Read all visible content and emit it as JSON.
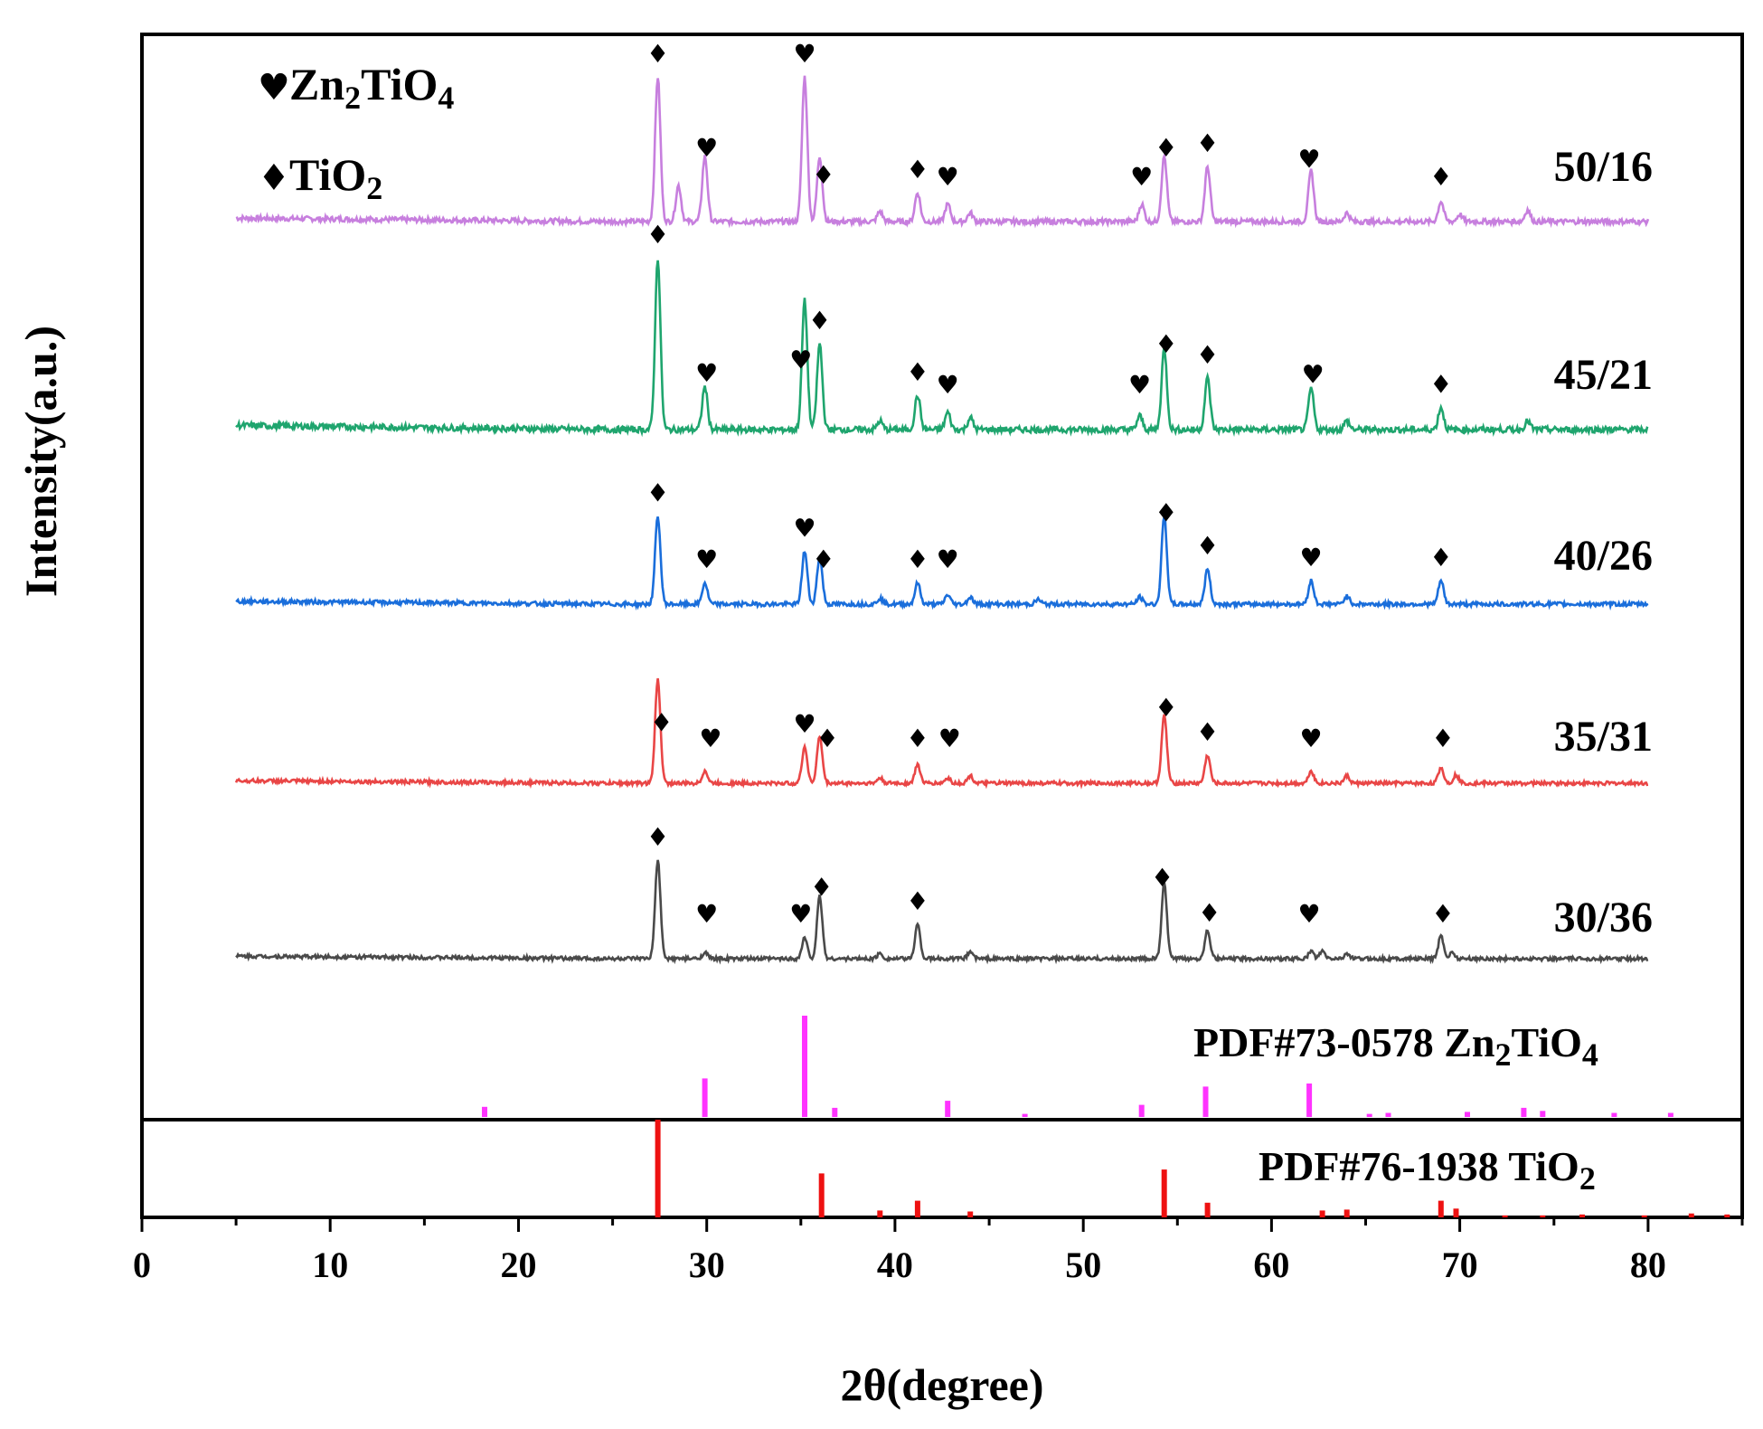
{
  "chart_data": {
    "type": "line",
    "title": "",
    "xlabel": "2θ(degree)",
    "ylabel": "Intensity(a.u.)",
    "xlim": [
      0,
      85
    ],
    "x_ticks": [
      0,
      10,
      20,
      30,
      40,
      50,
      60,
      70,
      80
    ],
    "legend": [
      {
        "symbol": "♥",
        "formula_parts": [
          "Zn",
          "2",
          "TiO",
          "4"
        ],
        "phase": "Zn2TiO4"
      },
      {
        "symbol": "♦",
        "formula_parts": [
          "TiO",
          "2"
        ],
        "phase": "TiO2"
      }
    ],
    "series": [
      {
        "name": "50/16",
        "color": "#C77FDE",
        "peaks": [
          [
            27.4,
            1.0
          ],
          [
            28.5,
            0.25
          ],
          [
            29.9,
            0.45
          ],
          [
            35.2,
            1.0
          ],
          [
            36.0,
            0.45
          ],
          [
            39.2,
            0.07
          ],
          [
            41.2,
            0.2
          ],
          [
            42.8,
            0.12
          ],
          [
            44.0,
            0.06
          ],
          [
            53.1,
            0.12
          ],
          [
            54.3,
            0.45
          ],
          [
            56.6,
            0.38
          ],
          [
            62.1,
            0.35
          ],
          [
            64.0,
            0.06
          ],
          [
            69.0,
            0.14
          ],
          [
            70.0,
            0.05
          ],
          [
            73.6,
            0.08
          ]
        ],
        "markers": [
          {
            "x": 27.4,
            "symbol": "♦"
          },
          {
            "x": 30.0,
            "symbol": "♥"
          },
          {
            "x": 35.2,
            "symbol": "♥"
          },
          {
            "x": 36.2,
            "symbol": "♦"
          },
          {
            "x": 41.2,
            "symbol": "♦"
          },
          {
            "x": 42.8,
            "symbol": "♥"
          },
          {
            "x": 53.1,
            "symbol": "♥"
          },
          {
            "x": 54.4,
            "symbol": "♦"
          },
          {
            "x": 56.6,
            "symbol": "♦"
          },
          {
            "x": 62.0,
            "symbol": "♥"
          },
          {
            "x": 69.0,
            "symbol": "♦"
          }
        ]
      },
      {
        "name": "45/21",
        "color": "#1FA56E",
        "peaks": [
          [
            27.4,
            1.0
          ],
          [
            29.9,
            0.25
          ],
          [
            35.2,
            0.75
          ],
          [
            36.0,
            0.5
          ],
          [
            39.2,
            0.05
          ],
          [
            41.2,
            0.2
          ],
          [
            42.8,
            0.1
          ],
          [
            44.0,
            0.07
          ],
          [
            53.0,
            0.08
          ],
          [
            54.3,
            0.47
          ],
          [
            56.6,
            0.3
          ],
          [
            62.1,
            0.24
          ],
          [
            64.0,
            0.05
          ],
          [
            69.0,
            0.13
          ],
          [
            73.6,
            0.05
          ]
        ],
        "markers": [
          {
            "x": 27.4,
            "symbol": "♦"
          },
          {
            "x": 30.0,
            "symbol": "♥"
          },
          {
            "x": 35.0,
            "symbol": "♥"
          },
          {
            "x": 36.0,
            "symbol": "♦"
          },
          {
            "x": 41.2,
            "symbol": "♦"
          },
          {
            "x": 42.8,
            "symbol": "♥"
          },
          {
            "x": 53.0,
            "symbol": "♥"
          },
          {
            "x": 54.4,
            "symbol": "♦"
          },
          {
            "x": 56.6,
            "symbol": "♦"
          },
          {
            "x": 62.2,
            "symbol": "♥"
          },
          {
            "x": 69.0,
            "symbol": "♦"
          }
        ]
      },
      {
        "name": "40/26",
        "color": "#1A6EDB",
        "peaks": [
          [
            27.4,
            0.75
          ],
          [
            29.9,
            0.18
          ],
          [
            35.2,
            0.45
          ],
          [
            36.0,
            0.4
          ],
          [
            39.2,
            0.05
          ],
          [
            41.2,
            0.18
          ],
          [
            42.8,
            0.08
          ],
          [
            44.0,
            0.06
          ],
          [
            47.6,
            0.04
          ],
          [
            53.0,
            0.06
          ],
          [
            54.3,
            0.75
          ],
          [
            56.6,
            0.3
          ],
          [
            62.1,
            0.2
          ],
          [
            64.0,
            0.07
          ],
          [
            69.0,
            0.2
          ]
        ],
        "markers": [
          {
            "x": 27.4,
            "symbol": "♦"
          },
          {
            "x": 30.0,
            "symbol": "♥"
          },
          {
            "x": 35.2,
            "symbol": "♥"
          },
          {
            "x": 36.2,
            "symbol": "♦"
          },
          {
            "x": 41.2,
            "symbol": "♦"
          },
          {
            "x": 42.8,
            "symbol": "♥"
          },
          {
            "x": 54.4,
            "symbol": "♦"
          },
          {
            "x": 56.6,
            "symbol": "♦"
          },
          {
            "x": 62.1,
            "symbol": "♥"
          },
          {
            "x": 69.0,
            "symbol": "♦"
          }
        ]
      },
      {
        "name": "35/31",
        "color": "#E94646",
        "peaks": [
          [
            27.4,
            1.0
          ],
          [
            29.9,
            0.12
          ],
          [
            35.2,
            0.35
          ],
          [
            36.0,
            0.45
          ],
          [
            39.2,
            0.05
          ],
          [
            41.2,
            0.18
          ],
          [
            42.8,
            0.05
          ],
          [
            44.0,
            0.07
          ],
          [
            54.3,
            0.65
          ],
          [
            56.6,
            0.27
          ],
          [
            62.1,
            0.12
          ],
          [
            64.0,
            0.07
          ],
          [
            69.0,
            0.15
          ],
          [
            69.8,
            0.08
          ]
        ],
        "markers": [
          {
            "x": 27.6,
            "symbol": "♦"
          },
          {
            "x": 30.2,
            "symbol": "♥"
          },
          {
            "x": 35.2,
            "symbol": "♥"
          },
          {
            "x": 36.4,
            "symbol": "♦"
          },
          {
            "x": 41.2,
            "symbol": "♦"
          },
          {
            "x": 42.9,
            "symbol": "♥"
          },
          {
            "x": 54.4,
            "symbol": "♦"
          },
          {
            "x": 56.6,
            "symbol": "♦"
          },
          {
            "x": 62.1,
            "symbol": "♥"
          },
          {
            "x": 69.1,
            "symbol": "♦"
          }
        ]
      },
      {
        "name": "30/36",
        "color": "#4A4A4A",
        "peaks": [
          [
            27.4,
            0.95
          ],
          [
            29.9,
            0.06
          ],
          [
            35.2,
            0.2
          ],
          [
            36.0,
            0.6
          ],
          [
            39.2,
            0.05
          ],
          [
            41.2,
            0.33
          ],
          [
            44.0,
            0.07
          ],
          [
            54.3,
            0.72
          ],
          [
            56.6,
            0.28
          ],
          [
            62.1,
            0.07
          ],
          [
            62.7,
            0.07
          ],
          [
            64.0,
            0.05
          ],
          [
            69.0,
            0.22
          ],
          [
            69.6,
            0.06
          ]
        ],
        "markers": [
          {
            "x": 27.4,
            "symbol": "♦"
          },
          {
            "x": 30.0,
            "symbol": "♥"
          },
          {
            "x": 35.0,
            "symbol": "♥"
          },
          {
            "x": 36.1,
            "symbol": "♦"
          },
          {
            "x": 41.2,
            "symbol": "♦"
          },
          {
            "x": 54.2,
            "symbol": "♦"
          },
          {
            "x": 56.7,
            "symbol": "♦"
          },
          {
            "x": 62.0,
            "symbol": "♥"
          },
          {
            "x": 69.1,
            "symbol": "♦"
          }
        ]
      }
    ],
    "references": [
      {
        "label_parts": [
          "PDF#73-0578 Zn",
          "2",
          "TiO",
          "4"
        ],
        "color": "#FF33FF",
        "sticks": [
          [
            18.2,
            0.1
          ],
          [
            29.9,
            0.38
          ],
          [
            35.2,
            1.0
          ],
          [
            36.8,
            0.09
          ],
          [
            42.8,
            0.16
          ],
          [
            46.9,
            0.03
          ],
          [
            53.1,
            0.12
          ],
          [
            56.5,
            0.3
          ],
          [
            62.0,
            0.33
          ],
          [
            65.2,
            0.03
          ],
          [
            66.2,
            0.04
          ],
          [
            70.4,
            0.05
          ],
          [
            73.4,
            0.09
          ],
          [
            74.4,
            0.06
          ],
          [
            78.2,
            0.04
          ],
          [
            81.2,
            0.04
          ]
        ]
      },
      {
        "label_parts": [
          "PDF#76-1938 TiO",
          "2"
        ],
        "color": "#EE1111",
        "sticks": [
          [
            27.4,
            1.0
          ],
          [
            36.1,
            0.45
          ],
          [
            39.2,
            0.07
          ],
          [
            41.2,
            0.17
          ],
          [
            44.0,
            0.06
          ],
          [
            54.3,
            0.49
          ],
          [
            56.6,
            0.15
          ],
          [
            62.7,
            0.07
          ],
          [
            64.0,
            0.08
          ],
          [
            69.0,
            0.17
          ],
          [
            69.8,
            0.09
          ],
          [
            72.4,
            0.02
          ],
          [
            74.4,
            0.02
          ],
          [
            76.5,
            0.03
          ],
          [
            79.8,
            0.02
          ],
          [
            82.3,
            0.04
          ],
          [
            84.2,
            0.03
          ]
        ]
      }
    ]
  }
}
